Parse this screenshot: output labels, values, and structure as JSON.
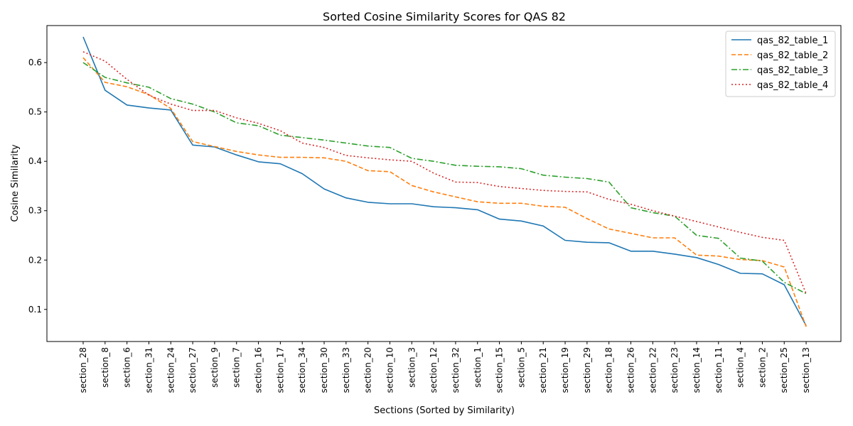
{
  "chart_data": {
    "type": "line",
    "title": "Sorted Cosine Similarity Scores for QAS 82",
    "xlabel": "Sections (Sorted by Similarity)",
    "ylabel": "Cosine Similarity",
    "ylim": [
      0.035,
      0.675
    ],
    "yticks": [
      0.1,
      0.2,
      0.3,
      0.4,
      0.5,
      0.6
    ],
    "grid": false,
    "legend_position": "top-right",
    "categories": [
      "section_28",
      "section_8",
      "section_6",
      "section_31",
      "section_24",
      "section_27",
      "section_9",
      "section_7",
      "section_16",
      "section_17",
      "section_34",
      "section_30",
      "section_33",
      "section_20",
      "section_10",
      "section_3",
      "section_12",
      "section_32",
      "section_1",
      "section_15",
      "section_5",
      "section_21",
      "section_19",
      "section_29",
      "section_18",
      "section_26",
      "section_22",
      "section_23",
      "section_14",
      "section_11",
      "section_4",
      "section_2",
      "section_25",
      "section_13"
    ],
    "series": [
      {
        "name": "qas_82_table_1",
        "color": "#1f77b4",
        "dash": "solid",
        "values": [
          0.652,
          0.544,
          0.514,
          0.508,
          0.504,
          0.433,
          0.429,
          0.413,
          0.399,
          0.395,
          0.375,
          0.344,
          0.326,
          0.317,
          0.314,
          0.314,
          0.308,
          0.306,
          0.302,
          0.283,
          0.279,
          0.269,
          0.24,
          0.236,
          0.235,
          0.218,
          0.218,
          0.212,
          0.205,
          0.191,
          0.173,
          0.172,
          0.15,
          0.067
        ]
      },
      {
        "name": "qas_82_table_2",
        "color": "#ff7f0e",
        "dash": "dashed",
        "values": [
          0.61,
          0.56,
          0.551,
          0.535,
          0.507,
          0.44,
          0.43,
          0.42,
          0.413,
          0.408,
          0.408,
          0.407,
          0.4,
          0.381,
          0.379,
          0.351,
          0.338,
          0.328,
          0.318,
          0.315,
          0.315,
          0.309,
          0.307,
          0.284,
          0.263,
          0.254,
          0.245,
          0.245,
          0.21,
          0.208,
          0.201,
          0.199,
          0.186,
          0.065
        ]
      },
      {
        "name": "qas_82_table_3",
        "color": "#2ca02c",
        "dash": "dashdot",
        "values": [
          0.6,
          0.57,
          0.559,
          0.55,
          0.527,
          0.516,
          0.5,
          0.478,
          0.472,
          0.453,
          0.448,
          0.443,
          0.437,
          0.431,
          0.428,
          0.406,
          0.4,
          0.392,
          0.39,
          0.389,
          0.385,
          0.372,
          0.368,
          0.365,
          0.358,
          0.306,
          0.296,
          0.289,
          0.25,
          0.244,
          0.204,
          0.198,
          0.155,
          0.132
        ]
      },
      {
        "name": "qas_82_table_4",
        "color": "#d62728",
        "dash": "dotted",
        "values": [
          0.622,
          0.603,
          0.566,
          0.534,
          0.516,
          0.503,
          0.503,
          0.488,
          0.477,
          0.462,
          0.437,
          0.428,
          0.412,
          0.407,
          0.403,
          0.4,
          0.376,
          0.358,
          0.357,
          0.349,
          0.345,
          0.341,
          0.339,
          0.338,
          0.323,
          0.313,
          0.3,
          0.289,
          0.278,
          0.267,
          0.256,
          0.246,
          0.24,
          0.132
        ]
      }
    ]
  }
}
